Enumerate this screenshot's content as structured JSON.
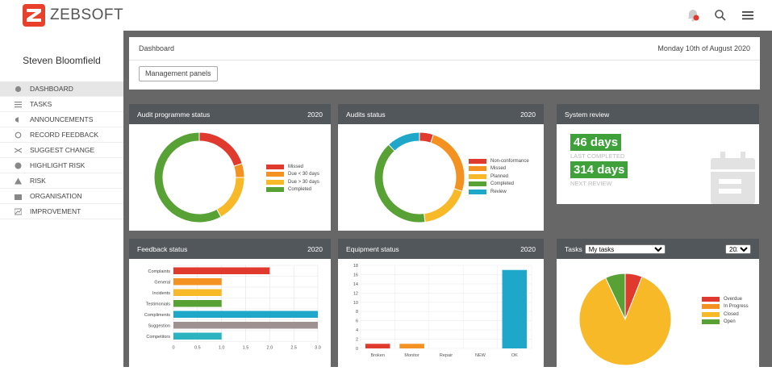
{
  "brand": {
    "name": "ZEBSOFT"
  },
  "colors": {
    "red": "#e03a2f",
    "orange": "#f39220",
    "yellow": "#f7b928",
    "green": "#58a135",
    "blue": "#1ea7c9",
    "grey": "#9e9190",
    "teal": "#2bb3c0",
    "header": "#52575c"
  },
  "user": {
    "name": "Steven Bloomfield"
  },
  "topbar": {
    "icons": [
      "bell-icon",
      "search-icon",
      "menu-icon"
    ]
  },
  "nav": [
    {
      "label": "DASHBOARD",
      "icon": "dashboard-icon",
      "active": true
    },
    {
      "label": "TASKS",
      "icon": "list-icon"
    },
    {
      "label": "ANNOUNCEMENTS",
      "icon": "megaphone-icon"
    },
    {
      "label": "RECORD FEEDBACK",
      "icon": "refresh-icon"
    },
    {
      "label": "SUGGEST CHANGE",
      "icon": "shuffle-icon"
    },
    {
      "label": "HIGHLIGHT RISK",
      "icon": "alert-circle-icon"
    },
    {
      "label": "RISK",
      "icon": "warning-icon"
    },
    {
      "label": "ORGANISATION",
      "icon": "building-icon"
    },
    {
      "label": "IMPROVEMENT",
      "icon": "chart-icon"
    }
  ],
  "dashboard": {
    "title": "Dashboard",
    "date": "Monday 10th of August 2020",
    "button": "Management panels"
  },
  "cards": {
    "audit_programme": {
      "title": "Audit programme status",
      "year": "2020"
    },
    "audits": {
      "title": "Audits status",
      "year": "2020"
    },
    "system_review": {
      "title": "System review",
      "last_value": "46 days",
      "last_label": "LAST COMPLETED",
      "next_value": "314 days",
      "next_label": "NEXT REVIEW"
    },
    "feedback": {
      "title": "Feedback status",
      "year": "2020"
    },
    "equipment": {
      "title": "Equipment status",
      "year": "2020"
    },
    "tasks": {
      "title": "Tasks",
      "filter": "My tasks",
      "year": "2020"
    }
  },
  "chart_data": [
    {
      "type": "pie",
      "id": "audit_programme",
      "labels": [
        "Missed",
        "Due < 30 days",
        "Due > 30 days",
        "Completed"
      ],
      "values": [
        20,
        5,
        17,
        58
      ],
      "colors": [
        "#e03a2f",
        "#f39220",
        "#f7b928",
        "#58a135"
      ]
    },
    {
      "type": "pie",
      "id": "audits",
      "labels": [
        "Non-conformance",
        "Missed",
        "Planned",
        "Completed",
        "Review"
      ],
      "values": [
        5,
        25,
        18,
        40,
        12
      ],
      "colors": [
        "#e03a2f",
        "#f39220",
        "#f7b928",
        "#58a135",
        "#1ea7c9"
      ]
    },
    {
      "type": "bar",
      "id": "feedback",
      "orientation": "horizontal",
      "categories": [
        "Complaints",
        "General",
        "Incidents",
        "Testimonials",
        "Compliments",
        "Suggestion",
        "Competitors"
      ],
      "values": [
        2,
        1,
        1,
        1,
        3,
        3,
        1
      ],
      "colors": [
        "#e03a2f",
        "#f39220",
        "#f7b928",
        "#58a135",
        "#1ea7c9",
        "#9e9190",
        "#2bb3c0"
      ],
      "xlim": [
        0,
        3
      ],
      "xticks": [
        "0",
        "0.5",
        "1.0",
        "1.5",
        "2.0",
        "2.5",
        "3.0"
      ]
    },
    {
      "type": "bar",
      "id": "equipment",
      "categories": [
        "Broken",
        "Monitor",
        "Repair",
        "NEW",
        "OK"
      ],
      "values": [
        1,
        1,
        0,
        0,
        17
      ],
      "colors": [
        "#e03a2f",
        "#f39220",
        "#f7b928",
        "#58a135",
        "#1ea7c9"
      ],
      "ylim": [
        0,
        18
      ],
      "yticks": [
        "0",
        "2",
        "4",
        "6",
        "8",
        "10",
        "12",
        "14",
        "16",
        "18"
      ]
    },
    {
      "type": "pie",
      "id": "tasks",
      "labels": [
        "Overdue",
        "In Progress",
        "Closed",
        "Open"
      ],
      "values": [
        6,
        0,
        87,
        7
      ],
      "colors": [
        "#e03a2f",
        "#f39220",
        "#f7b928",
        "#58a135"
      ]
    }
  ]
}
